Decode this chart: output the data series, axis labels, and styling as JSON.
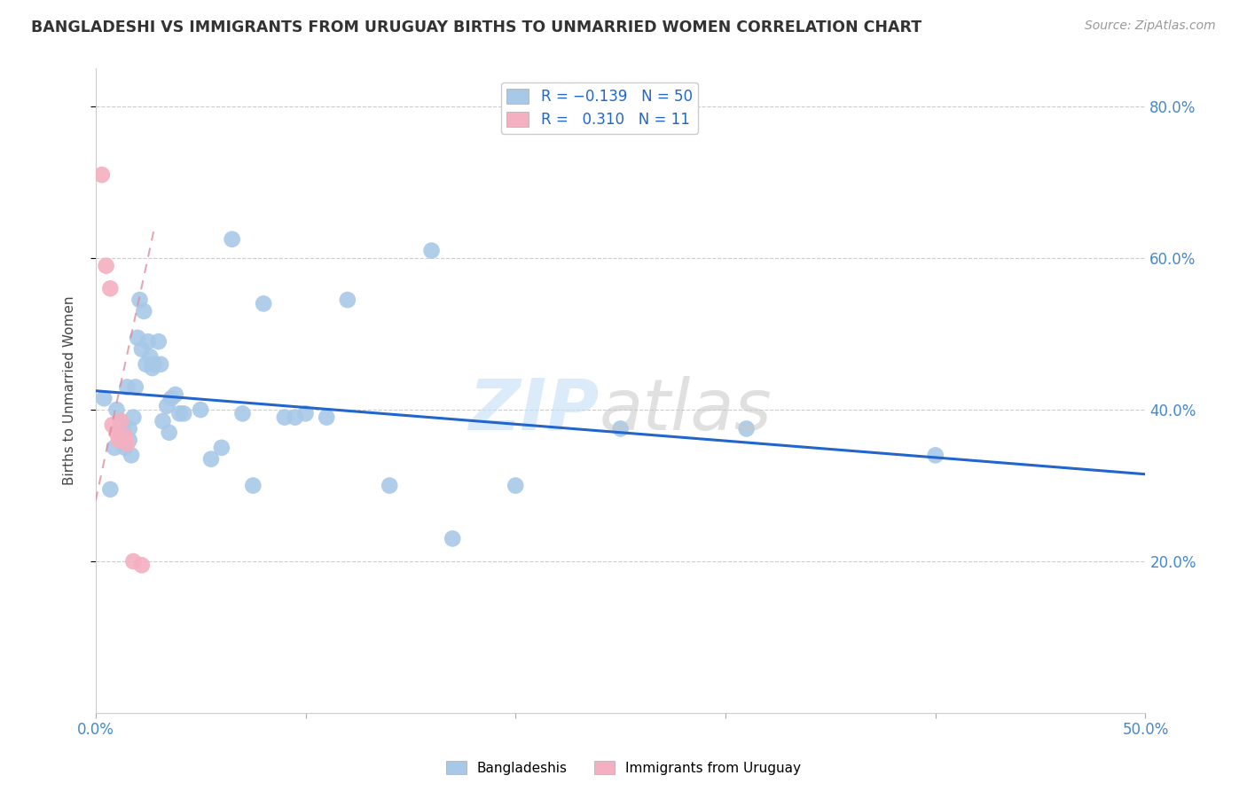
{
  "title": "BANGLADESHI VS IMMIGRANTS FROM URUGUAY BIRTHS TO UNMARRIED WOMEN CORRELATION CHART",
  "source": "Source: ZipAtlas.com",
  "ylabel": "Births to Unmarried Women",
  "xmin": 0.0,
  "xmax": 0.5,
  "ymin": 0.0,
  "ymax": 0.85,
  "blue_R": -0.139,
  "blue_N": 50,
  "pink_R": 0.31,
  "pink_N": 11,
  "blue_color": "#a8c8e8",
  "pink_color": "#f4b0c0",
  "blue_line_color": "#2266cc",
  "pink_line_color": "#dd8899",
  "legend_label_blue": "Bangladeshis",
  "legend_label_pink": "Immigrants from Uruguay",
  "blue_line_x0": 0.0,
  "blue_line_y0": 0.425,
  "blue_line_x1": 0.5,
  "blue_line_y1": 0.315,
  "pink_line_x0": 0.0,
  "pink_line_y0": 0.28,
  "pink_line_x1": 0.028,
  "pink_line_y1": 0.64,
  "blue_points_x": [
    0.004,
    0.007,
    0.009,
    0.01,
    0.012,
    0.013,
    0.014,
    0.015,
    0.016,
    0.016,
    0.017,
    0.018,
    0.019,
    0.02,
    0.021,
    0.022,
    0.023,
    0.024,
    0.025,
    0.026,
    0.027,
    0.028,
    0.03,
    0.031,
    0.032,
    0.034,
    0.035,
    0.036,
    0.038,
    0.04,
    0.042,
    0.05,
    0.055,
    0.06,
    0.065,
    0.07,
    0.075,
    0.08,
    0.09,
    0.095,
    0.1,
    0.11,
    0.12,
    0.14,
    0.16,
    0.17,
    0.2,
    0.25,
    0.31,
    0.4
  ],
  "blue_points_y": [
    0.415,
    0.295,
    0.35,
    0.4,
    0.385,
    0.375,
    0.35,
    0.43,
    0.375,
    0.36,
    0.34,
    0.39,
    0.43,
    0.495,
    0.545,
    0.48,
    0.53,
    0.46,
    0.49,
    0.47,
    0.455,
    0.46,
    0.49,
    0.46,
    0.385,
    0.405,
    0.37,
    0.415,
    0.42,
    0.395,
    0.395,
    0.4,
    0.335,
    0.35,
    0.625,
    0.395,
    0.3,
    0.54,
    0.39,
    0.39,
    0.395,
    0.39,
    0.545,
    0.3,
    0.61,
    0.23,
    0.3,
    0.375,
    0.375,
    0.34
  ],
  "pink_points_x": [
    0.003,
    0.005,
    0.007,
    0.008,
    0.01,
    0.011,
    0.012,
    0.014,
    0.015,
    0.018,
    0.022
  ],
  "pink_points_y": [
    0.71,
    0.59,
    0.56,
    0.38,
    0.37,
    0.36,
    0.385,
    0.365,
    0.355,
    0.2,
    0.195
  ]
}
